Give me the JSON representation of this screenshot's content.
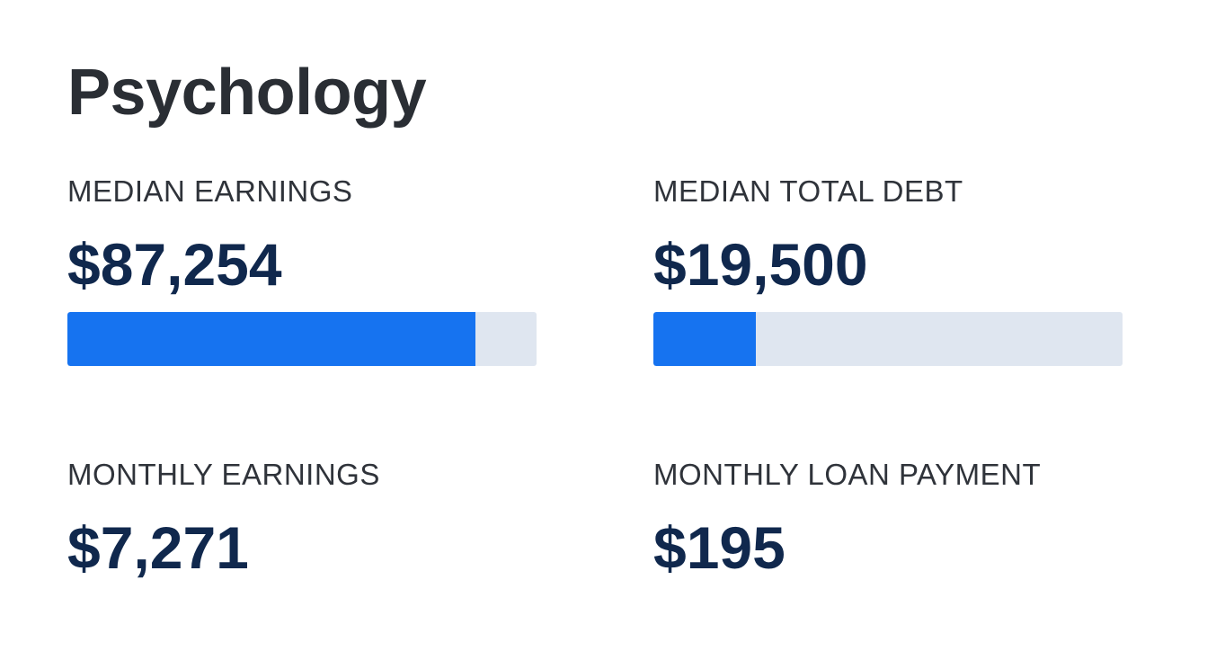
{
  "title": "Psychology",
  "stats": {
    "median_earnings": {
      "label": "MEDIAN EARNINGS",
      "value": "$87,254",
      "bar_fill_fraction": 0.869
    },
    "median_total_debt": {
      "label": "MEDIAN TOTAL DEBT",
      "value": "$19,500",
      "bar_fill_fraction": 0.219
    },
    "monthly_earnings": {
      "label": "MONTHLY EARNINGS",
      "value": "$7,271"
    },
    "monthly_loan_payment": {
      "label": "MONTHLY LOAN PAYMENT",
      "value": "$195"
    }
  },
  "colors": {
    "bar_fill": "#1673f0",
    "bar_track": "#dfe6f0",
    "value_text": "#10284d",
    "title_text": "#2a2e34"
  }
}
